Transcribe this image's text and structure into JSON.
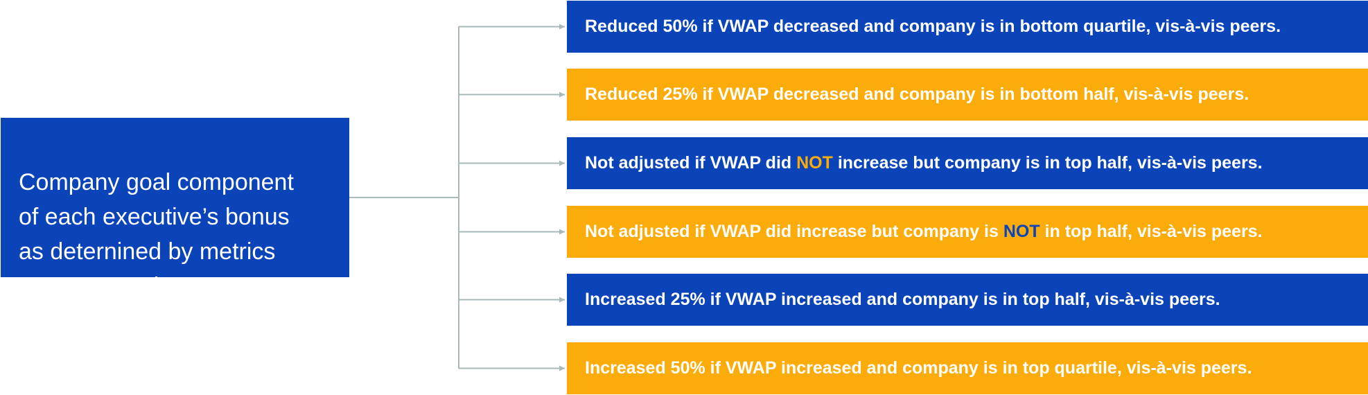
{
  "source": {
    "text": "Company goal component\nof each executive’s bonus\nas deternined by metrics\non Scorecard"
  },
  "colors": {
    "blue": "#0a44b8",
    "gold": "#fcac0a",
    "connector": "#a9b8b9"
  },
  "outcomes": [
    {
      "style": "blue",
      "before": "Reduced 50% if VWAP decreased and company is in bottom quartile, vis-à-vis peers.",
      "emphasis": "",
      "after": ""
    },
    {
      "style": "gold",
      "before": "Reduced 25% if VWAP decreased and company is in bottom half, vis-à-vis peers.",
      "emphasis": "",
      "after": ""
    },
    {
      "style": "blue",
      "before": "Not adjusted if VWAP did ",
      "emphasis": "NOT",
      "after": " increase but company is in top half, vis-à-vis peers."
    },
    {
      "style": "gold",
      "before": "Not adjusted if VWAP did increase but company is ",
      "emphasis": "NOT",
      "after": " in top half, vis-à-vis peers."
    },
    {
      "style": "blue",
      "before": "Increased 25% if VWAP increased and company is in top half, vis-à-vis peers.",
      "emphasis": "",
      "after": ""
    },
    {
      "style": "gold",
      "before": "Increased 50% if VWAP increased and company is in top quartile, vis-à-vis peers.",
      "emphasis": "",
      "after": ""
    }
  ]
}
